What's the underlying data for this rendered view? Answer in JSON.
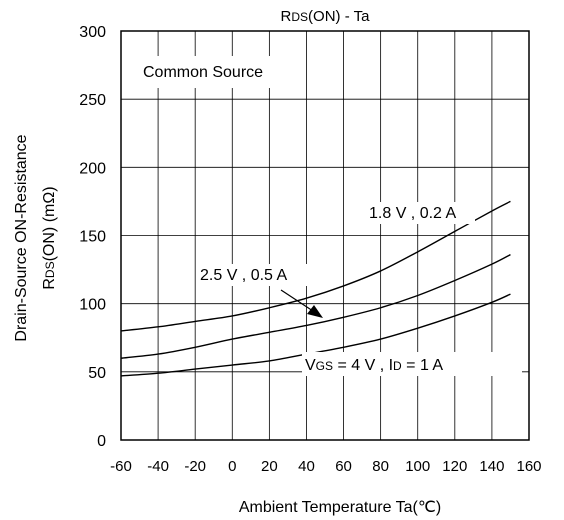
{
  "chart_data": {
    "type": "line",
    "title_main": "R",
    "title_sub": "DS",
    "title_rest": "(ON) - Ta",
    "xlabel": "Ambient Temperature Ta(℃)",
    "ylabel_line1": "Drain-Source ON-Resistance",
    "ylabel_line2_main": "R",
    "ylabel_line2_sub": "DS",
    "ylabel_line2_rest": "(ON) (mΩ)",
    "xlim": [
      -60,
      160
    ],
    "ylim": [
      0,
      300
    ],
    "x_ticks": [
      "-60",
      "-40",
      "-20",
      "0",
      "20",
      "40",
      "60",
      "80",
      "100",
      "120",
      "140",
      "160"
    ],
    "y_ticks": [
      "0",
      "50",
      "100",
      "150",
      "200",
      "250",
      "300"
    ],
    "grid": true,
    "annotation_common_source": "Common Source",
    "label_18": "1.8 V , 0.2 A",
    "label_25": "2.5 V , 0.5 A",
    "label_4v_a": "V",
    "label_4v_b": "GS",
    "label_4v_c": " = 4 V , I",
    "label_4v_d": "D",
    "label_4v_e": " = 1 A",
    "series": [
      {
        "x": [
          -60,
          -40,
          -20,
          0,
          20,
          40,
          60,
          80,
          100,
          120,
          140,
          150
        ],
        "values": [
          80,
          83,
          87,
          91,
          97,
          104,
          113,
          124,
          138,
          153,
          168,
          175
        ]
      },
      {
        "x": [
          -60,
          -40,
          -20,
          0,
          20,
          40,
          60,
          80,
          100,
          120,
          140,
          150
        ],
        "values": [
          60,
          63,
          68,
          74,
          79,
          84,
          90,
          97,
          106,
          117,
          129,
          136
        ]
      },
      {
        "x": [
          -60,
          -40,
          -20,
          0,
          20,
          40,
          60,
          80,
          100,
          120,
          140,
          150
        ],
        "values": [
          47,
          49,
          52,
          55,
          58,
          63,
          68,
          74,
          82,
          91,
          101,
          107
        ]
      }
    ]
  }
}
